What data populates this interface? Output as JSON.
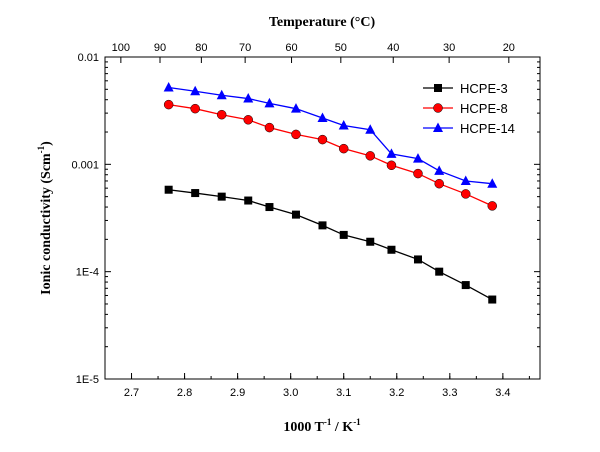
{
  "chart_data": {
    "type": "scatter",
    "title": "",
    "xlabel": "1000 T",
    "xlabel_sup": "-1",
    "xlabel_suffix": " / K",
    "xlabel_suffix_sup": "-1",
    "ylabel": "Ionic conductivity (Scm",
    "ylabel_sup": "-1",
    "ylabel_suffix": ")",
    "top_axis_label": "Temperature (°C)",
    "xlim": [
      2.65,
      3.47
    ],
    "ylim": [
      1e-05,
      0.01
    ],
    "y_scale": "log",
    "x_ticks": [
      2.7,
      2.8,
      2.9,
      3.0,
      3.1,
      3.2,
      3.3,
      3.4
    ],
    "x_tick_labels": [
      "2.7",
      "2.8",
      "2.9",
      "3.0",
      "3.1",
      "3.2",
      "3.3",
      "3.4"
    ],
    "y_ticks": [
      1e-05,
      0.0001,
      0.001,
      0.01
    ],
    "y_tick_labels": [
      "1E-5",
      "1E-4",
      "0.001",
      "0.01"
    ],
    "top_ticks_celsius": [
      100,
      90,
      80,
      70,
      60,
      50,
      40,
      30,
      20
    ],
    "top_tick_labels": [
      "100",
      "90",
      "80",
      "70",
      "60",
      "50",
      "40",
      "30",
      "20"
    ],
    "grid": false,
    "legend_position": "top-right",
    "series": [
      {
        "name": "HCPE-3",
        "color": "#000000",
        "marker": "square",
        "x": [
          2.77,
          2.82,
          2.87,
          2.92,
          2.96,
          3.01,
          3.06,
          3.1,
          3.15,
          3.19,
          3.24,
          3.28,
          3.33,
          3.38
        ],
        "y": [
          0.00058,
          0.00054,
          0.0005,
          0.00046,
          0.0004,
          0.00034,
          0.00027,
          0.00022,
          0.00019,
          0.00016,
          0.00013,
          0.0001,
          7.5e-05,
          5.5e-05
        ]
      },
      {
        "name": "HCPE-8",
        "color": "#ff0000",
        "marker": "circle",
        "x": [
          2.77,
          2.82,
          2.87,
          2.92,
          2.96,
          3.01,
          3.06,
          3.1,
          3.15,
          3.19,
          3.24,
          3.28,
          3.33,
          3.38
        ],
        "y": [
          0.0036,
          0.0033,
          0.0029,
          0.0026,
          0.0022,
          0.0019,
          0.0017,
          0.0014,
          0.0012,
          0.00098,
          0.00082,
          0.00066,
          0.00053,
          0.00041
        ]
      },
      {
        "name": "HCPE-14",
        "color": "#0000ff",
        "marker": "triangle",
        "x": [
          2.77,
          2.82,
          2.87,
          2.92,
          2.96,
          3.01,
          3.06,
          3.1,
          3.15,
          3.19,
          3.24,
          3.28,
          3.33,
          3.38
        ],
        "y": [
          0.0052,
          0.0048,
          0.0044,
          0.0041,
          0.0037,
          0.0033,
          0.0027,
          0.0023,
          0.0021,
          0.00125,
          0.00113,
          0.00087,
          0.0007,
          0.00066
        ]
      }
    ]
  }
}
